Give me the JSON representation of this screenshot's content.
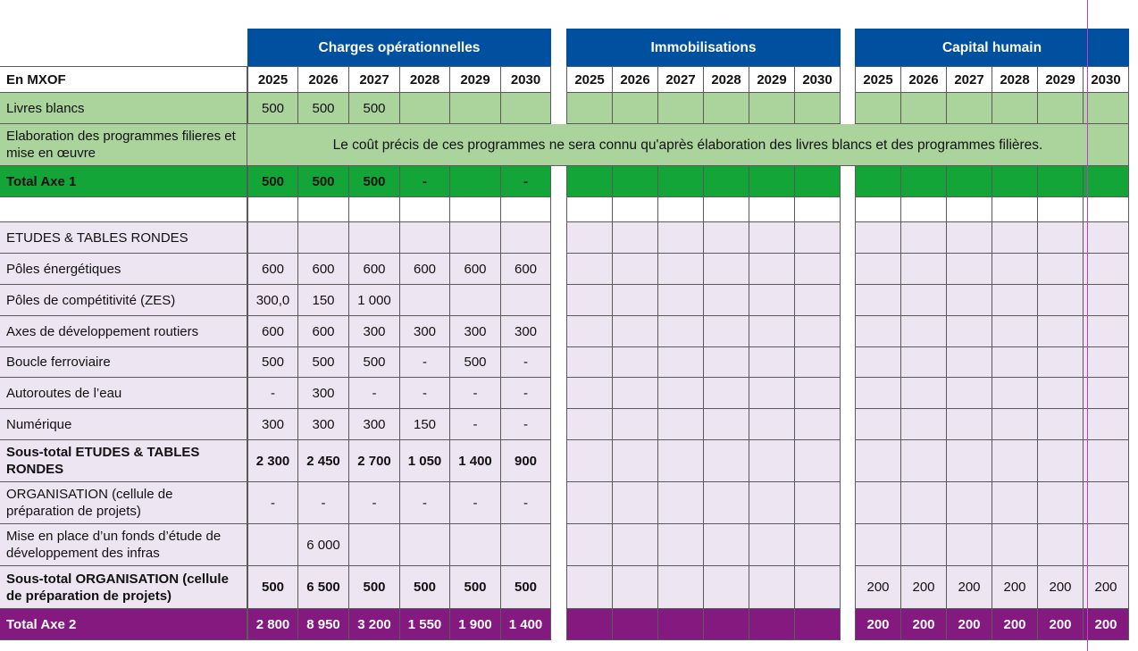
{
  "unit_label": "En MXOF",
  "years": [
    "2025",
    "2026",
    "2027",
    "2028",
    "2029",
    "2030"
  ],
  "groups": [
    {
      "label": "Charges opérationnelles"
    },
    {
      "label": "Immobilisations"
    },
    {
      "label": "Capital humain"
    }
  ],
  "colors": {
    "header_blue": "#0050A0",
    "light_green": "#AAD49C",
    "dark_green": "#13A538",
    "light_purple": "#EDE6F2",
    "dark_purple": "#84197F",
    "grid": "#5a5a5a",
    "guide_line": "#c23ad1"
  },
  "rows": [
    {
      "label": "Livres blancs",
      "style": "lightgreen",
      "bold": false,
      "values": [
        [
          "500",
          "500",
          "500",
          "",
          "",
          ""
        ],
        [
          "",
          "",
          "",
          "",
          "",
          ""
        ],
        [
          "",
          "",
          "",
          "",
          "",
          ""
        ]
      ]
    },
    {
      "label": "Elaboration des programmes filieres et mise en œuvre",
      "style": "lightgreen",
      "bold": false,
      "note": "Le coût précis de ces programmes ne sera connu qu'après élaboration des livres blancs et des programmes filières."
    },
    {
      "label": "Total Axe 1",
      "style": "darkgreen",
      "bold": true,
      "values": [
        [
          "500",
          "500",
          "500",
          "-",
          "",
          "-"
        ],
        [
          "",
          "",
          "",
          "",
          "",
          ""
        ],
        [
          "",
          "",
          "",
          "",
          "",
          ""
        ]
      ]
    },
    {
      "label": "",
      "style": "white",
      "bold": false,
      "values": [
        [
          "",
          "",
          "",
          "",
          "",
          ""
        ],
        [
          "",
          "",
          "",
          "",
          "",
          ""
        ],
        [
          "",
          "",
          "",
          "",
          "",
          ""
        ]
      ]
    },
    {
      "label": "ETUDES & TABLES RONDES",
      "style": "purple",
      "bold": false,
      "values": [
        [
          "",
          "",
          "",
          "",
          "",
          ""
        ],
        [
          "",
          "",
          "",
          "",
          "",
          ""
        ],
        [
          "",
          "",
          "",
          "",
          "",
          ""
        ]
      ]
    },
    {
      "label": "Pôles énergétiques",
      "style": "purple",
      "bold": false,
      "values": [
        [
          "600",
          "600",
          "600",
          "600",
          "600",
          "600"
        ],
        [
          "",
          "",
          "",
          "",
          "",
          ""
        ],
        [
          "",
          "",
          "",
          "",
          "",
          ""
        ]
      ]
    },
    {
      "label": "Pôles de compétitivité (ZES)",
      "style": "purple",
      "bold": false,
      "values": [
        [
          "300,0",
          "150",
          "1 000",
          "",
          "",
          ""
        ],
        [
          "",
          "",
          "",
          "",
          "",
          ""
        ],
        [
          "",
          "",
          "",
          "",
          "",
          ""
        ]
      ]
    },
    {
      "label": "Axes de développement routiers",
      "style": "purple",
      "bold": false,
      "values": [
        [
          "600",
          "600",
          "300",
          "300",
          "300",
          "300"
        ],
        [
          "",
          "",
          "",
          "",
          "",
          ""
        ],
        [
          "",
          "",
          "",
          "",
          "",
          ""
        ]
      ]
    },
    {
      "label": "Boucle ferroviaire",
      "style": "purple",
      "bold": false,
      "values": [
        [
          "500",
          "500",
          "500",
          "-",
          "500",
          "-"
        ],
        [
          "",
          "",
          "",
          "",
          "",
          ""
        ],
        [
          "",
          "",
          "",
          "",
          "",
          ""
        ]
      ]
    },
    {
      "label": "Autoroutes de l’eau",
      "style": "purple",
      "bold": false,
      "values": [
        [
          "-",
          "300",
          "-",
          "-",
          "-",
          "-"
        ],
        [
          "",
          "",
          "",
          "",
          "",
          ""
        ],
        [
          "",
          "",
          "",
          "",
          "",
          ""
        ]
      ]
    },
    {
      "label": "Numérique",
      "style": "purple",
      "bold": false,
      "values": [
        [
          "300",
          "300",
          "300",
          "150",
          "-",
          "-"
        ],
        [
          "",
          "",
          "",
          "",
          "",
          ""
        ],
        [
          "",
          "",
          "",
          "",
          "",
          ""
        ]
      ]
    },
    {
      "label": "Sous-total ETUDES & TABLES RONDES",
      "style": "purple",
      "bold": true,
      "values": [
        [
          "2 300",
          "2 450",
          "2 700",
          "1 050",
          "1 400",
          "900"
        ],
        [
          "",
          "",
          "",
          "",
          "",
          ""
        ],
        [
          "",
          "",
          "",
          "",
          "",
          ""
        ]
      ]
    },
    {
      "label": "ORGANISATION (cellule de préparation de projets)",
      "style": "purple",
      "bold": false,
      "values": [
        [
          "-",
          "-",
          "-",
          "-",
          "-",
          "-"
        ],
        [
          "",
          "",
          "",
          "",
          "",
          ""
        ],
        [
          "",
          "",
          "",
          "",
          "",
          ""
        ]
      ]
    },
    {
      "label": "Mise en place d’un fonds d’étude de développement des infras",
      "style": "purple",
      "bold": false,
      "values": [
        [
          "",
          "6 000",
          "",
          "",
          "",
          ""
        ],
        [
          "",
          "",
          "",
          "",
          "",
          ""
        ],
        [
          "",
          "",
          "",
          "",
          "",
          ""
        ]
      ]
    },
    {
      "label": "Sous-total ORGANISATION (cellule de préparation de projets)",
      "style": "purple",
      "bold": true,
      "values": [
        [
          "500",
          "6 500",
          "500",
          "500",
          "500",
          "500"
        ],
        [
          "",
          "",
          "",
          "",
          "",
          ""
        ],
        [
          "200",
          "200",
          "200",
          "200",
          "200",
          "200"
        ]
      ],
      "cap_bold": false
    },
    {
      "label": "Total Axe 2",
      "style": "darkpurple",
      "bold": true,
      "values": [
        [
          "2 800",
          "8 950",
          "3 200",
          "1 550",
          "1 900",
          "1 400"
        ],
        [
          "",
          "",
          "",
          "",
          "",
          ""
        ],
        [
          "200",
          "200",
          "200",
          "200",
          "200",
          "200"
        ]
      ]
    }
  ]
}
